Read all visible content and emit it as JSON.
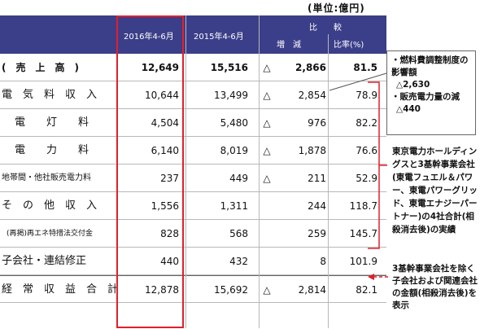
{
  "unit_label": "(単位:億円)",
  "header": {
    "period_current": "2016年4-6月",
    "period_prior": "2015年4-6月",
    "comparison": "比　　較",
    "change": "増　減",
    "ratio": "比率(%)"
  },
  "rows": [
    {
      "label": "(　売　上　高　)",
      "current": "12,649",
      "prior": "15,516",
      "sign": "△",
      "change": "2,866",
      "ratio": "81.5"
    },
    {
      "label": "電　気　料　収　入",
      "current": "10,644",
      "prior": "13,499",
      "sign": "△",
      "change": "2,854",
      "ratio": "78.9"
    },
    {
      "label": "電　　灯　　料",
      "current": "4,504",
      "prior": "5,480",
      "sign": "△",
      "change": "976",
      "ratio": "82.2"
    },
    {
      "label": "電　　力　　料",
      "current": "6,140",
      "prior": "8,019",
      "sign": "△",
      "change": "1,878",
      "ratio": "76.6"
    },
    {
      "label": "地帯間・他社販売電力料",
      "current": "237",
      "prior": "449",
      "sign": "△",
      "change": "211",
      "ratio": "52.9"
    },
    {
      "label": "そ　の　他　収　入",
      "current": "1,556",
      "prior": "1,311",
      "sign": "",
      "change": "244",
      "ratio": "118.7"
    },
    {
      "label": "(再掲)再エネ特措法交付金",
      "current": "828",
      "prior": "568",
      "sign": "",
      "change": "259",
      "ratio": "145.7"
    },
    {
      "label": "子会社・連結修正",
      "current": "440",
      "prior": "432",
      "sign": "",
      "change": "8",
      "ratio": "101.9"
    },
    {
      "label": "経　常　収　益　合　計",
      "current": "12,878",
      "prior": "15,692",
      "sign": "△",
      "change": "2,814",
      "ratio": "82.1"
    }
  ],
  "notes": {
    "fuel_title": "・燃料費調整制度の影響額",
    "fuel_value": "△2,630",
    "sales_title": "・販売電力量の減",
    "sales_value": "△440",
    "group_note": "東京電力ホールディングスと3基幹事業会社(東電フュエル＆パワー、東電パワーグリッド、東電エナジーパートナー)の4社合計(相殺消去後)の実績",
    "subsidiary_note": "3基幹事業会社を除く子会社および関連会社の金額(相殺消去後)を表示"
  },
  "colors": {
    "header_bg": "#3b3e88",
    "highlight": "#e0202a"
  }
}
